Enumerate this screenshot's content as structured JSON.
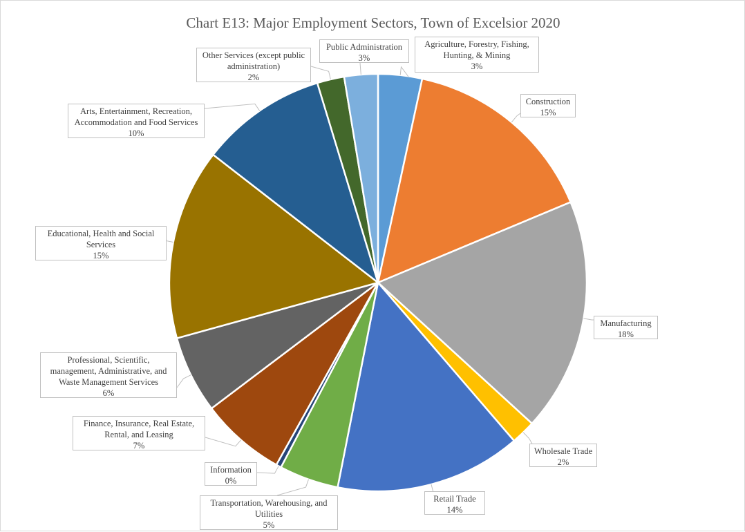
{
  "chart_data": {
    "type": "pie",
    "title": "Chart E13: Major Employment Sectors, Town of Excelsior 2020",
    "start_angle_deg": 0,
    "direction": "clockwise",
    "slices": [
      {
        "label": "Agriculture, Forestry, Fishing,\nHunting, & Mining",
        "value": 3.4,
        "display": "3%",
        "color": "#5b9bd5"
      },
      {
        "label": "Construction",
        "value": 15.3,
        "display": "15%",
        "color": "#ed7d31"
      },
      {
        "label": "Manufacturing",
        "value": 18.1,
        "display": "18%",
        "color": "#a5a5a5"
      },
      {
        "label": "Wholesale Trade",
        "value": 1.9,
        "display": "2%",
        "color": "#ffc000"
      },
      {
        "label": "Retail Trade",
        "value": 14.4,
        "display": "14%",
        "color": "#4472c4"
      },
      {
        "label": "Transportation, Warehousing, and\nUtilities",
        "value": 4.6,
        "display": "5%",
        "color": "#70ad47"
      },
      {
        "label": "Information",
        "value": 0.4,
        "display": "0%",
        "color": "#264478"
      },
      {
        "label": "Finance, Insurance, Real Estate,\nRental, and Leasing",
        "value": 6.6,
        "display": "7%",
        "color": "#9e480e"
      },
      {
        "label": "Professional,  Scientific,\nmanagement, Administrative, and\nWaste Management Services",
        "value": 6.0,
        "display": "6%",
        "color": "#636363"
      },
      {
        "label": "Educational, Health and Social\nServices",
        "value": 14.8,
        "display": "15%",
        "color": "#997300"
      },
      {
        "label": "Arts, Entertainment, Recreation,\nAccommodation and Food Services",
        "value": 9.8,
        "display": "10%",
        "color": "#255e91"
      },
      {
        "label": "Other Services (except public\nadministration)",
        "value": 2.1,
        "display": "2%",
        "color": "#43682b"
      },
      {
        "label": "Public Administration",
        "value": 2.6,
        "display": "3%",
        "color": "#7cafdd"
      }
    ]
  }
}
